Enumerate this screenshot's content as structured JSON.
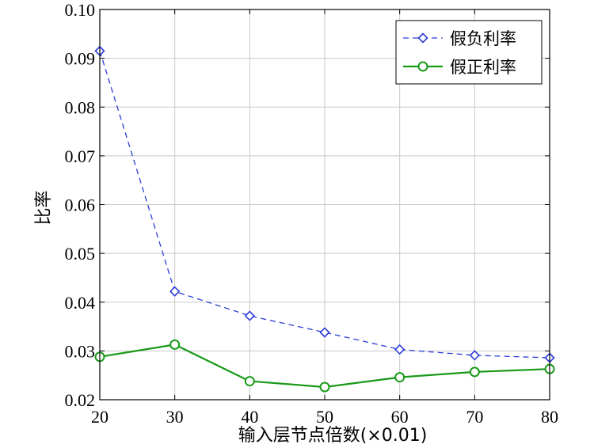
{
  "chart_data": {
    "type": "line",
    "xlabel": "输入层节点倍数(×0.01)",
    "ylabel": "比率",
    "xlim": [
      20,
      80
    ],
    "ylim": [
      0.02,
      0.1
    ],
    "xticks": [
      20,
      30,
      40,
      50,
      60,
      70,
      80
    ],
    "yticks": [
      0.02,
      0.03,
      0.04,
      0.05,
      0.06,
      0.07,
      0.08,
      0.09,
      0.1
    ],
    "x_tick_labels": [
      "20",
      "30",
      "40",
      "50",
      "60",
      "70",
      "80"
    ],
    "y_tick_labels": [
      "0.02",
      "0.03",
      "0.04",
      "0.05",
      "0.06",
      "0.07",
      "0.08",
      "0.09",
      "0.10"
    ],
    "grid": true,
    "legend_position": "top-right",
    "series": [
      {
        "name": "假负利率",
        "color": "#2b3bd6",
        "line_style": "dashed",
        "marker": "diamond",
        "x": [
          20,
          30,
          40,
          50,
          60,
          70,
          80
        ],
        "y": [
          0.0915,
          0.0422,
          0.0372,
          0.0338,
          0.0303,
          0.0291,
          0.0286
        ]
      },
      {
        "name": "假正利率",
        "color": "#1a9a1a",
        "line_style": "solid",
        "marker": "circle",
        "x": [
          20,
          30,
          40,
          50,
          60,
          70,
          80
        ],
        "y": [
          0.0288,
          0.0313,
          0.0238,
          0.0226,
          0.0246,
          0.0257,
          0.0263
        ]
      }
    ]
  }
}
